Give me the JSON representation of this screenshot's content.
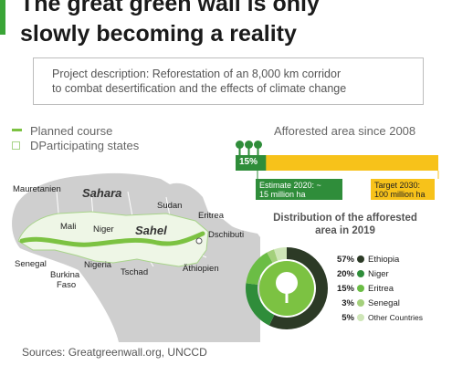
{
  "title": {
    "line1": "The great green wall is only",
    "line2": "slowly becoming a reality"
  },
  "description": {
    "line1": "Project description: Reforestation of an 8,000 km corridor",
    "line2": "to combat desertification and the effects of climate change"
  },
  "legend": {
    "planned": "Planned course",
    "states": "DParticipating states"
  },
  "map_labels": {
    "mauretanien": "Mauretanien",
    "sahara": "Sahara",
    "sudan": "Sudan",
    "eritrea": "Eritrea",
    "mali": "Mali",
    "niger": "Niger",
    "sahel": "Sahel",
    "dschibuti": "Dschibuti",
    "senegal": "Senegal",
    "nigeria": "Nigeria",
    "burkina1": "Burkina",
    "burkina2": "Faso",
    "tschad": "Tschad",
    "athiopien": "Äthiopien"
  },
  "afforested": {
    "title": "Afforested area since 2008",
    "percent_label": "15%",
    "progress_fraction": 0.15,
    "estimate_line1": "Estimate 2020: ~",
    "estimate_line2": "15 million ha",
    "target_line1": "Target 2030:",
    "target_line2": "100 million ha"
  },
  "distribution": {
    "title_line1": "Distribution of the afforested",
    "title_line2": "area in 2019"
  },
  "chart_data": {
    "type": "pie",
    "title": "Distribution of the afforested area in 2019",
    "categories": [
      "Ethiopia",
      "Niger",
      "Eritrea",
      "Senegal",
      "Other Countries"
    ],
    "values": [
      57,
      20,
      15,
      3,
      5
    ],
    "value_labels": [
      "57%",
      "20%",
      "15%",
      "3%",
      "5%"
    ],
    "colors": [
      "#2c3a26",
      "#2f8d3a",
      "#6bbd45",
      "#a4d07c",
      "#cfe6b8"
    ]
  },
  "sources": "Sources: Greatgreenwall.org, UNCCD"
}
